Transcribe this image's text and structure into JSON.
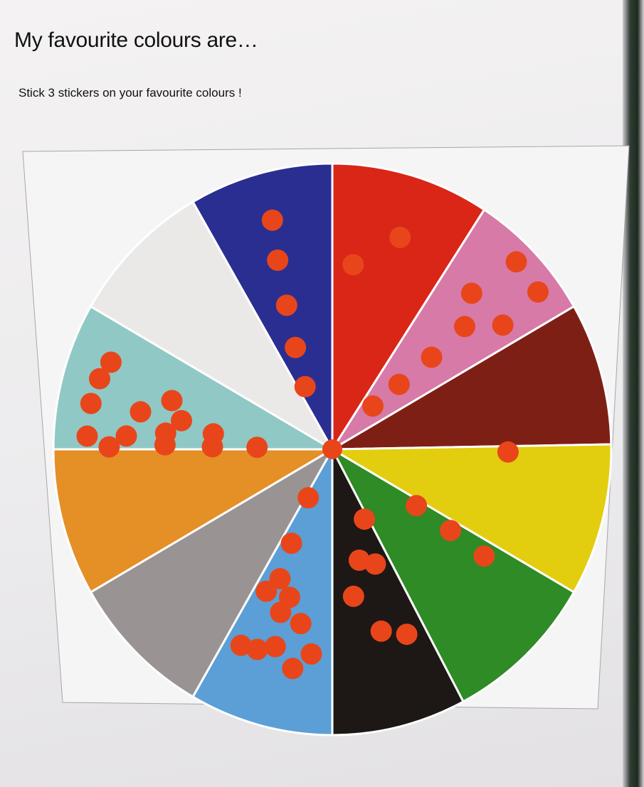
{
  "poster": {
    "title": "My favourite colours are…",
    "subtitle": "Stick 3 stickers on your favourite colours !"
  },
  "sticker_color": "#e8461a",
  "segments": [
    {
      "color_name": "red",
      "fill": "#d92617",
      "stickers": 2
    },
    {
      "color_name": "pink",
      "fill": "#d77aa8",
      "stickers": 8
    },
    {
      "color_name": "dark-red",
      "fill": "#7e1f16",
      "stickers": 0
    },
    {
      "color_name": "yellow",
      "fill": "#e3cd0f",
      "stickers": 1
    },
    {
      "color_name": "green",
      "fill": "#2e8b25",
      "stickers": 3
    },
    {
      "color_name": "black",
      "fill": "#1d1815",
      "stickers": 6
    },
    {
      "color_name": "light-blue",
      "fill": "#5b9fd6",
      "stickers": 12
    },
    {
      "color_name": "grey",
      "fill": "#9a9394",
      "stickers": 0
    },
    {
      "color_name": "orange",
      "fill": "#e58f27",
      "stickers": 0
    },
    {
      "color_name": "turquoise",
      "fill": "#90c8c5",
      "stickers": 14
    },
    {
      "color_name": "white",
      "fill": "#ebe9e8",
      "stickers": 0
    },
    {
      "color_name": "blue",
      "fill": "#2b2e91",
      "stickers": 5
    }
  ]
}
